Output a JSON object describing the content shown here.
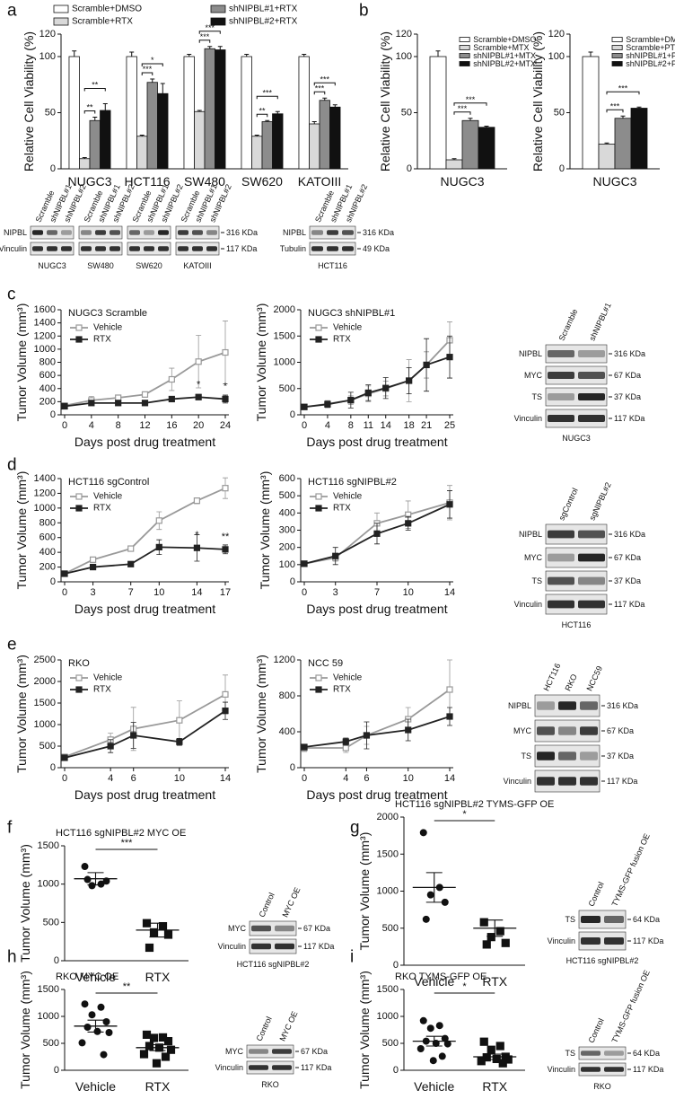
{
  "panel_letters": [
    "a",
    "b",
    "c",
    "d",
    "e",
    "f",
    "g",
    "h",
    "i"
  ],
  "chart_data": [
    {
      "type": "bar",
      "ylabel": "Relative Cell Viability (%)",
      "categories": [
        "NUGC3",
        "HCT116",
        "SW480",
        "SW620",
        "KATOIII"
      ],
      "series": [
        {
          "name": "Scramble+DMSO",
          "color": "#ffffff",
          "values": [
            100,
            100,
            100,
            100,
            100
          ],
          "errors": [
            5,
            4,
            2,
            2,
            2
          ]
        },
        {
          "name": "Scramble+RTX",
          "color": "#d9d9d9",
          "values": [
            9,
            29,
            51,
            29,
            40
          ],
          "errors": [
            1,
            1,
            1,
            1,
            2
          ]
        },
        {
          "name": "shNIPBL#1+RTX",
          "color": "#8c8c8c",
          "values": [
            43,
            77,
            107,
            42,
            61
          ],
          "errors": [
            3,
            3,
            2,
            1,
            2
          ]
        },
        {
          "name": "shNIPBL#2+RTX",
          "color": "#111111",
          "values": [
            52,
            67,
            106,
            49,
            55
          ],
          "errors": [
            6,
            9,
            3,
            2,
            2
          ]
        }
      ],
      "significance": [
        [
          "**",
          "**"
        ],
        [
          "***",
          "*"
        ],
        [
          "***",
          "***"
        ],
        [
          "**",
          "***"
        ],
        [
          "***",
          "***"
        ]
      ],
      "ylim": [
        0,
        120
      ],
      "yticks": [
        0,
        50,
        100,
        120
      ]
    },
    {
      "type": "bar",
      "ylabel": "Relative Cell Viability (%)",
      "categories": [
        "NUGC3"
      ],
      "series": [
        {
          "name": "Scramble+DMSO",
          "color": "#ffffff",
          "values": [
            100
          ],
          "errors": [
            5
          ]
        },
        {
          "name": "Scramble+MTX",
          "color": "#d9d9d9",
          "values": [
            8
          ],
          "errors": [
            1
          ]
        },
        {
          "name": "shNIPBL#1+MTX",
          "color": "#8c8c8c",
          "values": [
            43
          ],
          "errors": [
            2
          ]
        },
        {
          "name": "shNIPBL#2+MTX",
          "color": "#111111",
          "values": [
            37
          ],
          "errors": [
            1
          ]
        }
      ],
      "significance": [
        [
          "***",
          "***"
        ]
      ],
      "ylim": [
        0,
        120
      ],
      "yticks": [
        0,
        50,
        100,
        120
      ]
    },
    {
      "type": "bar",
      "ylabel": "Relative Cell Viability (%)",
      "categories": [
        "NUGC3"
      ],
      "series": [
        {
          "name": "Scramble+DMSO",
          "color": "#ffffff",
          "values": [
            100
          ],
          "errors": [
            4
          ]
        },
        {
          "name": "Scramble+PTX",
          "color": "#d9d9d9",
          "values": [
            22
          ],
          "errors": [
            1
          ]
        },
        {
          "name": "shNIPBL#1+PTX",
          "color": "#8c8c8c",
          "values": [
            45
          ],
          "errors": [
            2
          ]
        },
        {
          "name": "shNIPBL#2+PTX",
          "color": "#111111",
          "values": [
            54
          ],
          "errors": [
            1
          ]
        }
      ],
      "significance": [
        [
          "***",
          "***"
        ]
      ],
      "ylim": [
        0,
        120
      ],
      "yticks": [
        0,
        50,
        100,
        120
      ]
    },
    {
      "type": "line",
      "title": "NUGC3 Scramble",
      "xlabel": "Days post drug treatment",
      "ylabel": "Tumor Volume (mm³)",
      "x": [
        0,
        4,
        8,
        12,
        16,
        20,
        24
      ],
      "xlim": [
        0,
        24
      ],
      "xticks": [
        0,
        4,
        8,
        12,
        16,
        20,
        24
      ],
      "ylim": [
        0,
        1600
      ],
      "yticks": [
        0,
        200,
        400,
        600,
        800,
        1000,
        1200,
        1400,
        1600
      ],
      "series": [
        {
          "name": "Vehicle",
          "color": "#999999",
          "marker": "open-square",
          "values": [
            140,
            220,
            260,
            310,
            540,
            810,
            950
          ],
          "errors": [
            30,
            60,
            40,
            40,
            170,
            400,
            480
          ]
        },
        {
          "name": "RTX",
          "color": "#222222",
          "marker": "square",
          "values": [
            130,
            180,
            180,
            180,
            240,
            270,
            240
          ],
          "errors": [
            20,
            30,
            30,
            20,
            40,
            40,
            60
          ]
        }
      ],
      "annotations": [
        {
          "x": 20,
          "text": "*"
        },
        {
          "x": 24,
          "text": "*"
        }
      ]
    },
    {
      "type": "line",
      "title": "NUGC3 shNIPBL#1",
      "xlabel": "Days post drug treatment",
      "ylabel": "Tumor Volume (mm³)",
      "x": [
        0,
        4,
        8,
        11,
        14,
        18,
        21,
        25
      ],
      "xlim": [
        0,
        25
      ],
      "xticks": [
        0,
        4,
        8,
        11,
        14,
        18,
        21,
        25
      ],
      "ylim": [
        0,
        2000
      ],
      "yticks": [
        0,
        500,
        1000,
        1500,
        2000
      ],
      "series": [
        {
          "name": "Vehicle",
          "color": "#999999",
          "marker": "open-square",
          "values": [
            150,
            210,
            280,
            400,
            500,
            650,
            950,
            1420
          ],
          "errors": [
            40,
            60,
            80,
            150,
            140,
            400,
            250,
            350
          ]
        },
        {
          "name": "RTX",
          "color": "#222222",
          "marker": "square",
          "values": [
            150,
            200,
            280,
            420,
            510,
            650,
            950,
            1100
          ],
          "errors": [
            30,
            60,
            150,
            150,
            200,
            250,
            500,
            400
          ]
        }
      ]
    },
    {
      "type": "line",
      "title": "HCT116 sgControl",
      "xlabel": "Days post drug treatment",
      "ylabel": "Tumor Volume (mm³)",
      "x": [
        0,
        3,
        7,
        10,
        14,
        17
      ],
      "xlim": [
        0,
        17
      ],
      "xticks": [
        0,
        3,
        7,
        10,
        14,
        17
      ],
      "ylim": [
        0,
        1400
      ],
      "yticks": [
        0,
        200,
        400,
        600,
        800,
        1000,
        1200,
        1400
      ],
      "series": [
        {
          "name": "Vehicle",
          "color": "#999999",
          "marker": "open-square",
          "values": [
            110,
            300,
            450,
            830,
            1100,
            1270
          ],
          "errors": [
            10,
            20,
            20,
            120,
            40,
            140
          ]
        },
        {
          "name": "RTX",
          "color": "#222222",
          "marker": "square",
          "values": [
            110,
            200,
            240,
            470,
            460,
            440
          ],
          "errors": [
            10,
            30,
            20,
            100,
            180,
            60
          ]
        }
      ],
      "annotations": [
        {
          "x": 14,
          "text": "*"
        },
        {
          "x": 17,
          "text": "**"
        }
      ]
    },
    {
      "type": "line",
      "title": "HCT116 sgNIPBL#2",
      "xlabel": "Days post drug treatment",
      "ylabel": "Tumor Volume (mm³)",
      "x": [
        0,
        3,
        7,
        10,
        14
      ],
      "xlim": [
        0,
        14
      ],
      "xticks": [
        0,
        3,
        7,
        10,
        14
      ],
      "ylim": [
        0,
        600
      ],
      "yticks": [
        0,
        100,
        200,
        300,
        400,
        500,
        600
      ],
      "series": [
        {
          "name": "Vehicle",
          "color": "#999999",
          "marker": "open-square",
          "values": [
            105,
            140,
            340,
            390,
            460
          ],
          "errors": [
            10,
            20,
            60,
            80,
            100
          ]
        },
        {
          "name": "RTX",
          "color": "#222222",
          "marker": "square",
          "values": [
            105,
            150,
            280,
            340,
            450
          ],
          "errors": [
            10,
            50,
            60,
            40,
            80
          ]
        }
      ]
    },
    {
      "type": "line",
      "title": "RKO",
      "xlabel": "Days post drug treatment",
      "ylabel": "Tumor Volume (mm³)",
      "x": [
        0,
        4,
        6,
        10,
        14
      ],
      "xlim": [
        0,
        14
      ],
      "xticks": [
        0,
        4,
        6,
        10,
        14
      ],
      "ylim": [
        0,
        2500
      ],
      "yticks": [
        0,
        500,
        1000,
        1500,
        2000,
        2500
      ],
      "series": [
        {
          "name": "Vehicle",
          "color": "#999999",
          "marker": "open-square",
          "values": [
            250,
            650,
            900,
            1100,
            1700
          ],
          "errors": [
            40,
            150,
            500,
            450,
            450
          ]
        },
        {
          "name": "RTX",
          "color": "#222222",
          "marker": "square",
          "values": [
            230,
            500,
            750,
            600,
            1320
          ],
          "errors": [
            30,
            150,
            300,
            80,
            200
          ]
        }
      ]
    },
    {
      "type": "line",
      "title": "NCC 59",
      "xlabel": "Days post drug treatment",
      "ylabel": "Tumor Volume (mm³)",
      "x": [
        0,
        4,
        6,
        10,
        14
      ],
      "xlim": [
        0,
        14
      ],
      "xticks": [
        0,
        4,
        6,
        10,
        14
      ],
      "ylim": [
        0,
        1200
      ],
      "yticks": [
        0,
        400,
        800,
        1200
      ],
      "series": [
        {
          "name": "Vehicle",
          "color": "#999999",
          "marker": "open-square",
          "values": [
            220,
            220,
            360,
            540,
            870
          ],
          "errors": [
            40,
            50,
            100,
            130,
            330
          ]
        },
        {
          "name": "RTX",
          "color": "#222222",
          "marker": "square",
          "values": [
            230,
            290,
            360,
            420,
            570
          ],
          "errors": [
            30,
            40,
            150,
            120,
            100
          ]
        }
      ]
    },
    {
      "type": "dot",
      "title": "HCT116 sgNIPBL#2 MYC OE",
      "ylabel": "Tumor Volume (mm³)",
      "categories": [
        "Vehicle",
        "RTX"
      ],
      "values": [
        [
          1230,
          1000,
          980,
          1040,
          1060
        ],
        [
          490,
          450,
          370,
          340,
          170
        ]
      ],
      "means": [
        1070,
        400
      ],
      "sems": [
        80,
        90
      ],
      "markers": [
        "circle",
        "square"
      ],
      "annotation": "***",
      "ylim": [
        0,
        1500
      ],
      "yticks": [
        0,
        500,
        1000,
        1500
      ]
    },
    {
      "type": "dot",
      "title": "HCT116 sgNIPBL#2 TYMS-GFP OE",
      "ylabel": "Tumor Volume (mm³)",
      "categories": [
        "Vehicle",
        "RTX"
      ],
      "values": [
        [
          1790,
          1050,
          950,
          850,
          620
        ],
        [
          580,
          460,
          380,
          300,
          280
        ]
      ],
      "means": [
        1050,
        500
      ],
      "sems": [
        200,
        110
      ],
      "markers": [
        "circle",
        "square"
      ],
      "annotation": "*",
      "ylim": [
        0,
        2000
      ],
      "yticks": [
        0,
        500,
        1000,
        1500,
        2000
      ]
    },
    {
      "type": "dot",
      "title": "RKO MYC OE",
      "ylabel": "Tumor Volume (mm³)",
      "categories": [
        "Vehicle",
        "RTX"
      ],
      "values": [
        [
          1230,
          1170,
          1030,
          900,
          800,
          720,
          700,
          510,
          290
        ],
        [
          660,
          610,
          600,
          540,
          450,
          420,
          380,
          300,
          250,
          130
        ]
      ],
      "means": [
        820,
        420
      ],
      "sems": [
        110,
        55
      ],
      "markers": [
        "circle",
        "square"
      ],
      "annotation": "**",
      "ylim": [
        0,
        1500
      ],
      "yticks": [
        0,
        500,
        1000,
        1500
      ]
    },
    {
      "type": "dot",
      "title": "RKO TYMS-GFP OE",
      "ylabel": "Tumor Volume (mm³)",
      "categories": [
        "Vehicle",
        "RTX"
      ],
      "values": [
        [
          920,
          830,
          780,
          590,
          540,
          500,
          490,
          400,
          260,
          180
        ],
        [
          530,
          450,
          380,
          250,
          240,
          210,
          200,
          170,
          130
        ]
      ],
      "means": [
        540,
        250
      ],
      "sems": [
        90,
        50
      ],
      "markers": [
        "circle",
        "square"
      ],
      "annotation": "*",
      "ylim": [
        0,
        1500
      ],
      "yticks": [
        0,
        500,
        1000,
        1500
      ]
    }
  ],
  "blots": [
    {
      "rows": [
        {
          "protein": "NIPBL",
          "size": "316 KDa"
        },
        {
          "protein": "Vinculin",
          "size": "117 KDa"
        }
      ],
      "groups": [
        {
          "lanes": [
            "Scramble",
            "shNIPBL#1",
            "shNIPBL#2"
          ],
          "caption": "NUGC3"
        },
        {
          "lanes": [
            "Scramble",
            "shNIPBL#1",
            "shNIPBL#2"
          ],
          "caption": "SW480"
        },
        {
          "lanes": [
            "Scramble",
            "shNIPBL#1",
            "shNIPBL#2"
          ],
          "caption": "SW620"
        },
        {
          "lanes": [
            "Scramble",
            "shNIPBL#1",
            "shNIPBL#2"
          ],
          "caption": "KATOIII"
        }
      ]
    },
    {
      "rows": [
        {
          "protein": "NIPBL",
          "size": "316 KDa"
        },
        {
          "protein": "Tubulin",
          "size": "49 KDa"
        }
      ],
      "groups": [
        {
          "lanes": [
            "Scramble",
            "shNIPBL#1",
            "shNIPBL#2"
          ],
          "caption": "HCT116"
        }
      ]
    },
    {
      "rows": [
        {
          "protein": "NIPBL",
          "size": "316 KDa"
        },
        {
          "protein": "MYC",
          "size": "67 KDa"
        },
        {
          "protein": "TS",
          "size": "37 KDa"
        },
        {
          "protein": "Vinculin",
          "size": "117 KDa"
        }
      ],
      "groups": [
        {
          "lanes": [
            "Scramble",
            "shNIPBL#1"
          ],
          "caption": "NUGC3"
        }
      ]
    },
    {
      "rows": [
        {
          "protein": "NIPBL",
          "size": "316 KDa"
        },
        {
          "protein": "MYC",
          "size": "67 KDa"
        },
        {
          "protein": "TS",
          "size": "37 KDa"
        },
        {
          "protein": "Vinculin",
          "size": "117 KDa"
        }
      ],
      "groups": [
        {
          "lanes": [
            "sgControl",
            "sgNIPBL#2"
          ],
          "caption": "HCT116"
        }
      ]
    },
    {
      "rows": [
        {
          "protein": "NIPBL",
          "size": "316 KDa"
        },
        {
          "protein": "MYC",
          "size": "67 KDa"
        },
        {
          "protein": "TS",
          "size": "37 KDa"
        },
        {
          "protein": "Vinculin",
          "size": "117 KDa"
        }
      ],
      "groups": [
        {
          "lanes": [
            "HCT116",
            "RKO",
            "NCC59"
          ]
        }
      ]
    },
    {
      "rows": [
        {
          "protein": "MYC",
          "size": "67 KDa"
        },
        {
          "protein": "Vinculin",
          "size": "117 KDa"
        }
      ],
      "groups": [
        {
          "lanes": [
            "Control",
            "MYC OE"
          ],
          "caption": "HCT116 sgNIPBL#2"
        }
      ]
    },
    {
      "rows": [
        {
          "protein": "TS",
          "size": "64 KDa"
        },
        {
          "protein": "Vinculin",
          "size": "117 KDa"
        }
      ],
      "groups": [
        {
          "lanes": [
            "Control",
            "TYMS-GFP fusion OE"
          ],
          "caption": "HCT116 sgNIPBL#2"
        }
      ]
    },
    {
      "rows": [
        {
          "protein": "MYC",
          "size": "67 KDa"
        },
        {
          "protein": "Vinculin",
          "size": "117 KDa"
        }
      ],
      "groups": [
        {
          "lanes": [
            "Control",
            "MYC OE"
          ],
          "caption": "RKO"
        }
      ]
    },
    {
      "rows": [
        {
          "protein": "TS",
          "size": "64 KDa"
        },
        {
          "protein": "Vinculin",
          "size": "117 KDa"
        }
      ],
      "groups": [
        {
          "lanes": [
            "Control",
            "TYMS-GFP fusion OE"
          ],
          "caption": "RKO"
        }
      ]
    }
  ]
}
